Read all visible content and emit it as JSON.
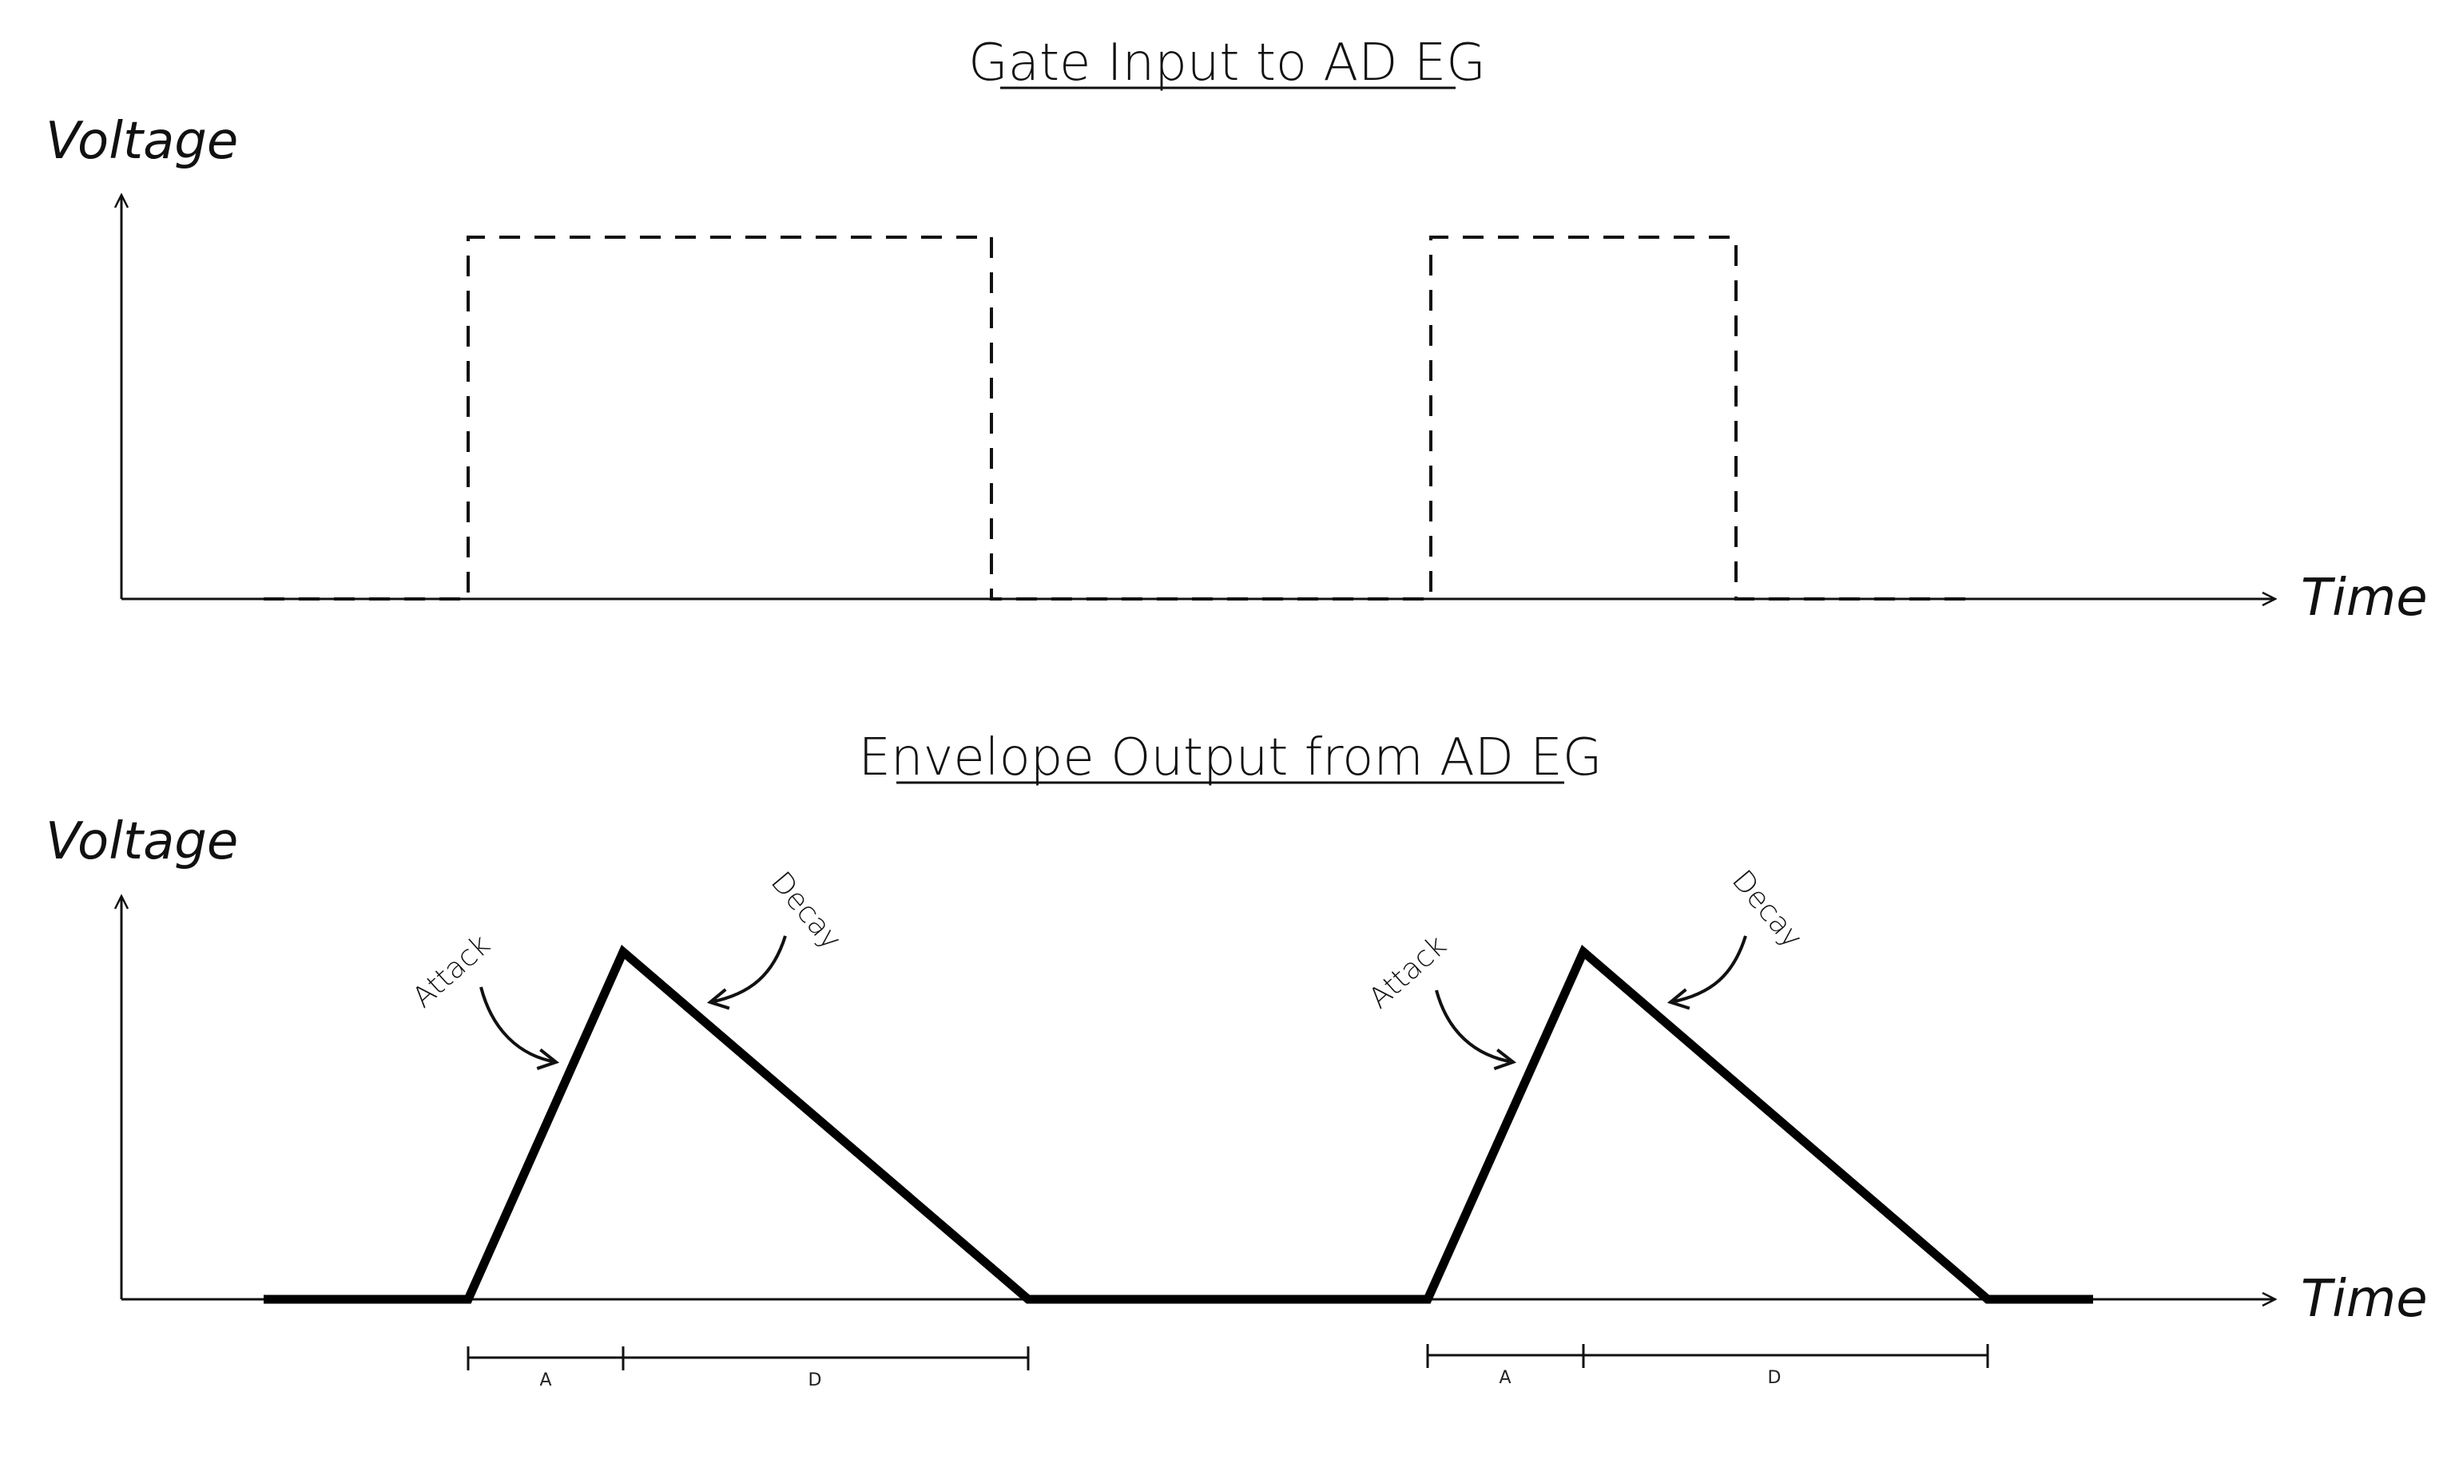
{
  "top_panel": {
    "title": "Gate Input to AD EG",
    "y_label": "Voltage",
    "x_label": "Time"
  },
  "bottom_panel": {
    "title": "Envelope Output from AD EG",
    "y_label": "Voltage",
    "x_label": "Time",
    "pulses": [
      {
        "attack_label": "Attack",
        "decay_label": "Decay",
        "a_marker": "A",
        "d_marker": "D"
      },
      {
        "attack_label": "Attack",
        "decay_label": "Decay",
        "a_marker": "A",
        "d_marker": "D"
      }
    ]
  }
}
